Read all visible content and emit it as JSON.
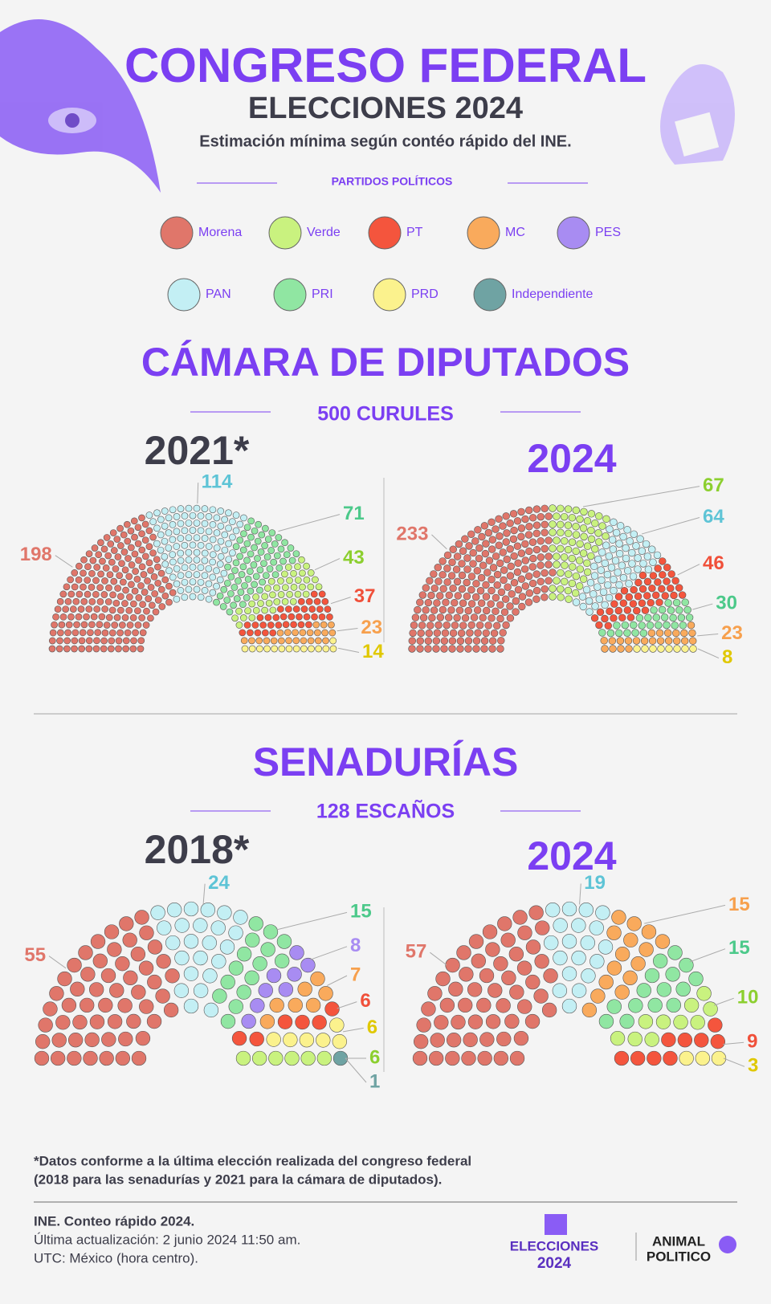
{
  "header": {
    "title": "CONGRESO FEDERAL",
    "subtitle": "ELECCIONES 2024",
    "note": "Estimación mínima según contéo rápido del INE.",
    "legend_title": "PARTIDOS POLÍTICOS"
  },
  "parties": [
    {
      "name": "Morena",
      "color": "#e0766a",
      "label_color": "#e0766a"
    },
    {
      "name": "Verde",
      "color": "#c9f27f",
      "label_color": "#8ccf2f"
    },
    {
      "name": "PT",
      "color": "#f4553d",
      "label_color": "#f0503a"
    },
    {
      "name": "MC",
      "color": "#f9aa5c",
      "label_color": "#f7a04d"
    },
    {
      "name": "PES",
      "color": "#a88cf2",
      "label_color": "#a88cf2"
    },
    {
      "name": "PAN",
      "color": "#c3eff4",
      "label_color": "#5ec4d6"
    },
    {
      "name": "PRI",
      "color": "#90e6a2",
      "label_color": "#4cc98a"
    },
    {
      "name": "PRD",
      "color": "#fbf28d",
      "label_color": "#e0c800"
    },
    {
      "name": "Independiente",
      "color": "#6fa3a3",
      "label_color": "#6fa3a3"
    }
  ],
  "sections": [
    {
      "title": "CÁMARA DE DIPUTADOS",
      "subtitle": "500 CURULES"
    },
    {
      "title": "SENADURÍAS",
      "subtitle": "128 ESCAÑOS"
    }
  ],
  "chart_data": [
    {
      "type": "parliament",
      "title": "2021*",
      "title_color": "#3d3d4a",
      "categories": [
        "Morena",
        "PAN",
        "PRI",
        "Verde",
        "PT",
        "MC",
        "PRD"
      ],
      "values": [
        198,
        114,
        71,
        43,
        37,
        23,
        14
      ]
    },
    {
      "type": "parliament",
      "title": "2024",
      "title_color": "#7b3ff2",
      "categories": [
        "Morena",
        "Verde",
        "PAN",
        "PT",
        "PRI",
        "MC",
        "PRD"
      ],
      "values": [
        233,
        67,
        64,
        46,
        30,
        23,
        8
      ]
    },
    {
      "type": "parliament",
      "title": "2018*",
      "title_color": "#3d3d4a",
      "categories": [
        "Morena",
        "PAN",
        "PRI",
        "PES",
        "MC",
        "PT",
        "PRD",
        "Verde",
        "Independiente"
      ],
      "values": [
        55,
        24,
        15,
        8,
        7,
        6,
        6,
        6,
        1
      ]
    },
    {
      "type": "parliament",
      "title": "2024",
      "title_color": "#7b3ff2",
      "categories": [
        "Morena",
        "PAN",
        "MC",
        "PRI",
        "Verde",
        "PT",
        "PRD"
      ],
      "values": [
        57,
        19,
        15,
        15,
        10,
        9,
        3
      ]
    }
  ],
  "footnote": [
    "*Datos conforme a la última elección realizada del congreso federal",
    "(2018 para las senadurías y 2021 para la cámara de diputados)."
  ],
  "source": [
    "INE. Conteo rápido 2024.",
    "Última actualización: 2 junio 2024 11:50 am.",
    "UTC: México (hora centro)."
  ],
  "logos": {
    "elecciones": "ELECCIONES",
    "year": "2024",
    "brand": [
      "ANIMAL",
      "POLITICO"
    ]
  }
}
